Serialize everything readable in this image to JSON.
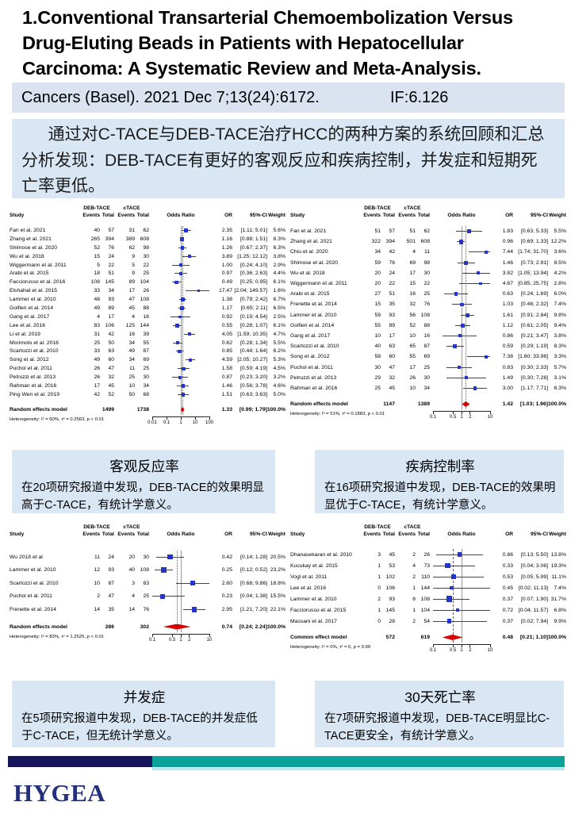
{
  "slide": {
    "title": "1.Conventional Transarterial Chemoembolization Versus Drug-Eluting Beads in Patients with Hepatocellular Carcinoma: A Systematic Review and Meta-Analysis.",
    "journal": "Cancers (Basel). 2021 Dec 7;13(24):6172.",
    "impact_factor": "IF:6.126",
    "summary": "通过对C-TACE与DEB-TACE治疗HCC的两种方案的系统回顾和汇总分析发现：DEB-TACE有更好的客观反应和疾病控制，并发症和短期死亡率更低。",
    "logo": "HYGEA"
  },
  "captions": [
    {
      "title": "客观反应率",
      "body": "在20项研究报道中发现，DEB-TACE的效果明显高于C-TACE，有统计学意义。"
    },
    {
      "title": "疾病控制率",
      "body": "在16项研究报道中发现，DEB-TACE的效果明显优于C-TACE，有统计学意义。"
    },
    {
      "title": "并发症",
      "body": "在5项研究报道中发现，DEB-TACE的并发症低于C-TACE，但无统计学意义。"
    },
    {
      "title": "30天死亡率",
      "body": "在7项研究报道中发现，DEB-TACE明显比C-TACE更安全，有统计学意义。"
    }
  ],
  "plot_columns": {
    "study": "Study",
    "group1": "DEB-TACE",
    "group2": "cTACE",
    "events": "Events",
    "total": "Total",
    "odds_ratio": "Odds Ratio",
    "or": "OR",
    "ci": "95%-CI",
    "weight": "Weight"
  },
  "chart_data": [
    {
      "type": "forest",
      "model_label": "Random effects model",
      "studies": [
        [
          "Fan et al. 2021",
          40,
          57,
          31,
          62,
          "2.35",
          "[1.11; 5.01]",
          "5.6%"
        ],
        [
          "Zhang et al. 2021",
          265,
          394,
          389,
          608,
          "1.16",
          "[0.88; 1.51]",
          "8.3%"
        ],
        [
          "Shimose et al. 2020",
          52,
          76,
          62,
          98,
          "1.26",
          "[0.67; 2.37]",
          "6.3%"
        ],
        [
          "Wu et al. 2018",
          15,
          24,
          9,
          30,
          "3.89",
          "[1.25; 12.12]",
          "3.8%"
        ],
        [
          "Wiggermann et al. 2011",
          5,
          22,
          5,
          22,
          "1.00",
          "[0.24; 4.10]",
          "2.9%"
        ],
        [
          "Arabi et al. 2015",
          18,
          51,
          9,
          25,
          "0.97",
          "[0.36; 2.63]",
          "4.4%"
        ],
        [
          "Facciorusso et al. 2016",
          108,
          145,
          89,
          104,
          "0.49",
          "[0.25; 0.95]",
          "6.1%"
        ],
        [
          "Elshahat et al. 2015",
          33,
          34,
          17,
          26,
          "17.47",
          "[2.04; 149.57]",
          "1.6%"
        ],
        [
          "Lammer et al. 2010",
          48,
          93,
          47,
          108,
          "1.38",
          "[0.79; 2.42]",
          "6.7%"
        ],
        [
          "Golfieri et al. 2014",
          49,
          89,
          45,
          88,
          "1.17",
          "[0.65; 2.11]",
          "6.5%"
        ],
        [
          "Gang et al. 2017",
          4,
          17,
          4,
          16,
          "0.92",
          "[0.19; 4.54]",
          "2.5%"
        ],
        [
          "Lee et al. 2016",
          83,
          106,
          125,
          144,
          "0.55",
          "[0.28; 1.07]",
          "6.1%"
        ],
        [
          "Li et al. 2019",
          31,
          42,
          16,
          39,
          "4.05",
          "[1.59; 10.35]",
          "4.7%"
        ],
        [
          "Morimoto et al. 2016",
          25,
          50,
          34,
          55,
          "0.62",
          "[0.28; 1.34]",
          "5.5%"
        ],
        [
          "Scartozzi et al. 2010",
          33,
          63,
          49,
          87,
          "0.85",
          "[0.44; 1.64]",
          "6.2%"
        ],
        [
          "Song et al. 2012",
          49,
          60,
          34,
          69,
          "4.59",
          "[2.05; 10.27]",
          "5.3%"
        ],
        [
          "Puchol et al. 2011",
          26,
          47,
          11,
          25,
          "1.58",
          "[0.59; 4.19]",
          "4.5%"
        ],
        [
          "Petruzzi et al. 2013",
          26,
          32,
          25,
          30,
          "0.87",
          "[0.23; 3.20]",
          "3.2%"
        ],
        [
          "Rahman et al. 2016",
          17,
          45,
          10,
          34,
          "1.46",
          "[0.56; 3.78]",
          "4.6%"
        ],
        [
          "Ping Wen et al. 2019",
          42,
          52,
          50,
          68,
          "1.51",
          "[0.63; 3.63]",
          "5.0%"
        ]
      ],
      "pooled": {
        "total1": 1499,
        "total2": 1738,
        "or": "1.33",
        "ci": "[0.99; 1.79]",
        "weight": "100.0%"
      },
      "heterogeneity": "Heterogeneity: I² = 60%, τ² = 0.2563, p < 0.01",
      "axis": {
        "min": 0.01,
        "max": 100,
        "ticks": [
          0.01,
          0.1,
          1,
          10,
          100
        ],
        "labels": [
          "0.01",
          "0.1",
          "1",
          "10",
          "100"
        ]
      },
      "pooled_line_style": "dotted"
    },
    {
      "type": "forest",
      "model_label": "Random effects model",
      "studies": [
        [
          "Fan et al. 2021",
          51,
          57,
          51,
          62,
          "1.83",
          "[0.63; 5.33]",
          "5.5%"
        ],
        [
          "Zhang et al. 2021",
          322,
          394,
          501,
          608,
          "0.96",
          "[0.69; 1.33]",
          "12.2%"
        ],
        [
          "Chiu et al. 2020",
          34,
          42,
          4,
          11,
          "7.44",
          "[1.74; 31.70]",
          "3.6%"
        ],
        [
          "Shimose et al. 2020",
          59,
          76,
          69,
          98,
          "1.46",
          "[0.73; 2.91]",
          "8.5%"
        ],
        [
          "Wu et al. 2018",
          20,
          24,
          17,
          30,
          "3.82",
          "[1.05; 13.94]",
          "4.2%"
        ],
        [
          "Wiggermann et al. 2011",
          20,
          22,
          15,
          22,
          "4.67",
          "[0.85; 25.75]",
          "2.8%"
        ],
        [
          "Arabi et al. 2015",
          27,
          51,
          16,
          25,
          "0.63",
          "[0.24; 1.69]",
          "6.0%"
        ],
        [
          "Frenette et al. 2014",
          15,
          35,
          32,
          76,
          "1.03",
          "[0.46; 2.32]",
          "7.4%"
        ],
        [
          "Lammer et al. 2010",
          59,
          93,
          56,
          108,
          "1.61",
          "[0.91; 2.84]",
          "9.8%"
        ],
        [
          "Golfieri et al. 2014",
          55,
          89,
          52,
          88,
          "1.12",
          "[0.61; 2.05]",
          "9.4%"
        ],
        [
          "Gang et al. 2017",
          10,
          17,
          10,
          16,
          "0.86",
          "[0.21; 3.47]",
          "3.8%"
        ],
        [
          "Scartozzi et al. 2010",
          40,
          63,
          65,
          87,
          "0.59",
          "[0.29; 1.19]",
          "8.3%"
        ],
        [
          "Song et al. 2012",
          58,
          60,
          55,
          69,
          "7.38",
          "[1.60; 33.98]",
          "3.3%"
        ],
        [
          "Puchol et al. 2011",
          30,
          47,
          17,
          25,
          "0.83",
          "[0.30; 2.33]",
          "5.7%"
        ],
        [
          "Petruzzi et al. 2013",
          29,
          32,
          26,
          30,
          "1.49",
          "[0.30; 7.28]",
          "3.1%"
        ],
        [
          "Rahman et al. 2016",
          25,
          45,
          10,
          34,
          "3.00",
          "[1.17; 7.71]",
          "6.3%"
        ]
      ],
      "pooled": {
        "total1": 1147,
        "total2": 1389,
        "or": "1.42",
        "ci": "[1.03; 1.96]",
        "weight": "100.0%"
      },
      "heterogeneity": "Heterogeneity: I² = 51%, τ² = 0.1883, p < 0.01",
      "axis": {
        "min": 0.1,
        "max": 10,
        "ticks": [
          0.1,
          0.5,
          1,
          2,
          10
        ],
        "labels": [
          "0.1",
          "0.5",
          "1",
          "2",
          "10"
        ]
      },
      "pooled_line_style": "dotted"
    },
    {
      "type": "forest",
      "model_label": "Random effects model",
      "studies": [
        [
          "Wu 2018 et al",
          11,
          24,
          20,
          30,
          "0.42",
          "[0.14; 1.28]",
          "20.5%"
        ],
        [
          "Lammer et al. 2010",
          12,
          93,
          40,
          108,
          "0.25",
          "[0.12; 0.52]",
          "23.2%"
        ],
        [
          "Scartozzi et al. 2010",
          10,
          87,
          3,
          63,
          "2.60",
          "[0.68; 9.86]",
          "18.8%"
        ],
        [
          "Puchol et al. 2011",
          2,
          47,
          4,
          25,
          "0.23",
          "[0.04; 1.38]",
          "15.5%"
        ],
        [
          "Frenette et al. 2014",
          14,
          35,
          14,
          76,
          "2.95",
          "[1.21; 7.20]",
          "22.1%"
        ]
      ],
      "pooled": {
        "total1": 286,
        "total2": 302,
        "or": "0.74",
        "ci": "[0.24; 2.24]",
        "weight": "100.0%"
      },
      "heterogeneity": "Heterogeneity: I² = 83%, τ² = 1.2525, p < 0.01",
      "axis": {
        "min": 0.1,
        "max": 10,
        "ticks": [
          0.1,
          0.5,
          1,
          2,
          10
        ],
        "labels": [
          "0.1",
          "0.5",
          "1",
          "2",
          "10"
        ]
      },
      "pooled_line_style": "dotted"
    },
    {
      "type": "forest",
      "model_label": "Common effect model",
      "studies": [
        [
          "Dhanasekaran et al. 2010",
          3,
          45,
          2,
          26,
          "0.86",
          "[0.13; 5.50]",
          "13.8%"
        ],
        [
          "Kucukay et al. 2015",
          1,
          53,
          4,
          73,
          "0.33",
          "[0.04; 3.06]",
          "19.3%"
        ],
        [
          "Vogl et al. 2011",
          1,
          102,
          2,
          110,
          "0.53",
          "[0.05; 5.99]",
          "11.1%"
        ],
        [
          "Lee et al. 2016",
          0,
          106,
          1,
          144,
          "0.45",
          "[0.02; 11.13]",
          "7.4%"
        ],
        [
          "Lammer et al. 2010",
          2,
          93,
          6,
          108,
          "0.37",
          "[0.07; 1.90]",
          "31.7%"
        ],
        [
          "Facciorusso et al. 2015",
          1,
          145,
          1,
          104,
          "0.72",
          "[0.04; 11.57]",
          "6.8%"
        ],
        [
          "Massani et al. 2017",
          0,
          28,
          2,
          54,
          "0.37",
          "[0.02; 7.94]",
          "9.9%"
        ]
      ],
      "pooled": {
        "total1": 572,
        "total2": 619,
        "or": "0.48",
        "ci": "[0.21; 1.10]",
        "weight": "100.0%"
      },
      "heterogeneity": "Heterogeneity: I² = 0%, τ² = 0, p = 0.99",
      "axis": {
        "min": 0.1,
        "max": 10,
        "ticks": [
          0.1,
          0.5,
          1,
          2,
          10
        ],
        "labels": [
          "0.1",
          "0.5",
          "1",
          "2",
          "10"
        ]
      },
      "pooled_line_style": "dashed"
    }
  ]
}
